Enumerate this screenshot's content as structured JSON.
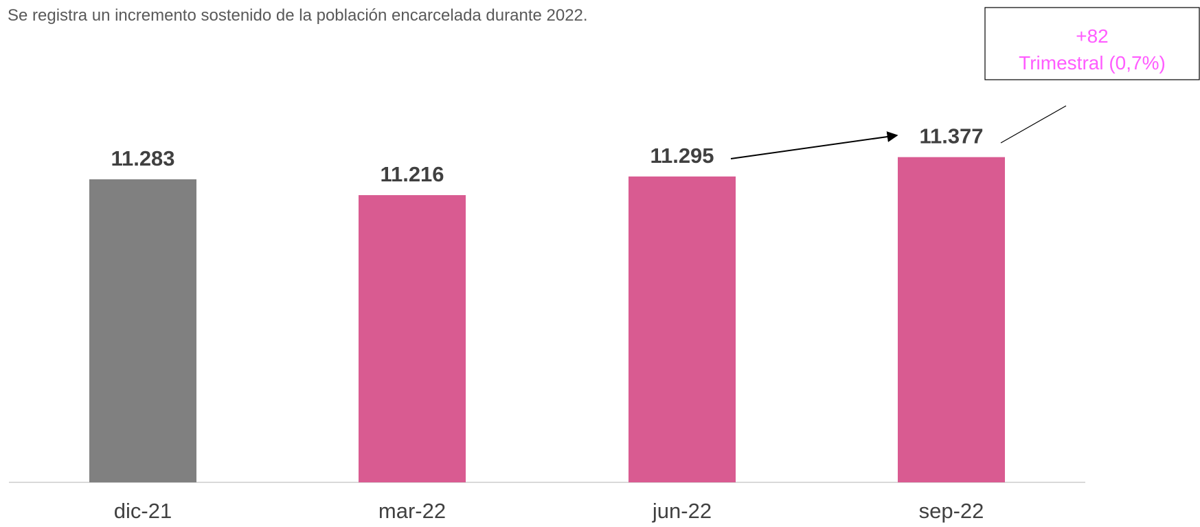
{
  "chart_data": {
    "type": "bar",
    "subtitle": "Se registra un incremento sostenido de la población encarcelada durante 2022.",
    "categories": [
      "dic-21",
      "mar-22",
      "jun-22",
      "sep-22"
    ],
    "values": [
      11283,
      11216,
      11295,
      11377
    ],
    "value_labels": [
      "11.283",
      "11.216",
      "11.295",
      "11.377"
    ],
    "colors": [
      "#808080",
      "#d95b91",
      "#d95b91",
      "#d95b91"
    ],
    "ylim": [
      10000,
      11600
    ],
    "annotation": [
      "+82",
      "Trimestral (0,7%)"
    ]
  }
}
